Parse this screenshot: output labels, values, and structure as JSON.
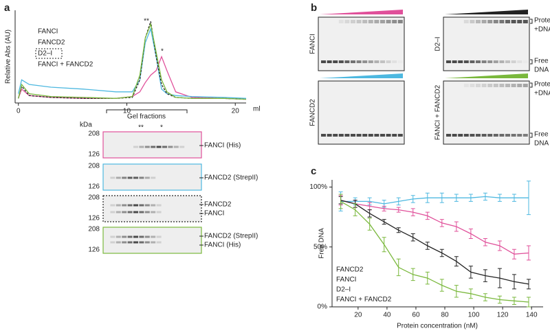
{
  "panel_labels": [
    "a",
    "b",
    "c"
  ],
  "chart_data": [
    {
      "type": "line",
      "y_label": "Relative Abs (AU)",
      "x_label": "ml",
      "x": [
        0,
        0.3,
        1,
        3,
        6,
        9,
        10.5,
        11.2,
        11.7,
        12.2,
        12.7,
        13.2,
        13.7,
        14.5,
        16,
        19,
        21
      ],
      "xlim": [
        -0.3,
        21
      ],
      "xticks": [
        0,
        10,
        20
      ],
      "ylim": [
        0,
        100
      ],
      "annotations": [
        "**",
        "*"
      ],
      "bracket_label": "Gel fractions",
      "series": [
        {
          "name": "FANCI",
          "color": "#e0509a",
          "values": [
            5,
            15,
            8,
            6,
            5,
            5,
            7,
            12,
            22,
            30,
            35,
            50,
            35,
            12,
            6,
            5,
            4
          ]
        },
        {
          "name": "FANCD2",
          "color": "#4db8e0",
          "values": [
            10,
            25,
            20,
            17,
            15,
            12,
            12,
            25,
            65,
            80,
            50,
            15,
            10,
            8,
            7,
            6,
            5
          ]
        },
        {
          "name": "D2–I",
          "color": "#222222",
          "dash": true,
          "values": [
            5,
            18,
            8,
            6,
            5,
            5,
            6,
            25,
            70,
            88,
            50,
            20,
            10,
            6,
            5,
            5,
            4
          ]
        },
        {
          "name": "FANCI + FANCD2",
          "color": "#7ab83c",
          "values": [
            5,
            20,
            10,
            7,
            6,
            5,
            7,
            30,
            70,
            85,
            55,
            25,
            12,
            6,
            5,
            5,
            4
          ]
        }
      ]
    },
    {
      "type": "line",
      "x_label": "Protein concentration (nM)",
      "y_label": "Free DNA",
      "legend": "lower left",
      "x": [
        8,
        18,
        28,
        38,
        48,
        58,
        68,
        78,
        88,
        98,
        108,
        118,
        128,
        138
      ],
      "xlim": [
        2,
        148
      ],
      "xticks": [
        20,
        40,
        60,
        80,
        100,
        120,
        140
      ],
      "ylim": [
        0,
        106
      ],
      "yticks": [
        {
          "value": 0,
          "label": "0%"
        },
        {
          "value": 50,
          "label": "50%"
        },
        {
          "value": 100,
          "label": "100%"
        }
      ],
      "series": [
        {
          "name": "FANCD2",
          "color": "#4db8e0",
          "values": [
            88,
            88,
            88,
            86,
            88,
            90,
            91,
            91,
            91,
            91,
            92,
            91,
            91,
            91
          ],
          "errors": [
            8,
            3,
            3,
            3,
            3,
            3,
            4,
            4,
            3,
            3,
            3,
            3,
            3,
            14
          ]
        },
        {
          "name": "FANCI",
          "color": "#e0509a",
          "values": [
            89,
            86,
            84,
            82,
            81,
            79,
            76,
            70,
            67,
            61,
            54,
            51,
            44,
            45
          ],
          "errors": [
            4,
            3,
            3,
            2,
            2,
            3,
            3,
            3,
            4,
            4,
            3,
            4,
            4,
            6
          ]
        },
        {
          "name": "D2–I",
          "color": "#222222",
          "values": [
            89,
            86,
            78,
            71,
            64,
            58,
            51,
            45,
            38,
            29,
            26,
            24,
            21,
            19
          ],
          "errors": [
            3,
            3,
            3,
            2,
            2,
            3,
            3,
            3,
            4,
            5,
            5,
            8,
            6,
            4
          ]
        },
        {
          "name": "FANCI + FANCD2",
          "color": "#7ab83c",
          "values": [
            88,
            81,
            69,
            52,
            33,
            27,
            24,
            18,
            13,
            11,
            8,
            6,
            5,
            4
          ],
          "errors": [
            6,
            5,
            5,
            6,
            7,
            5,
            5,
            5,
            5,
            4,
            3,
            3,
            3,
            4
          ]
        }
      ]
    }
  ],
  "gels_a": {
    "unit": "kDa",
    "markers": [
      "208",
      "126"
    ],
    "annotations": [
      "**",
      "*"
    ],
    "gels": [
      {
        "color": "#e0509a",
        "labels": [
          "FANCI (His)"
        ]
      },
      {
        "color": "#4db8e0",
        "labels": [
          "FANCD2 (StrepII)"
        ]
      },
      {
        "color": "#222222",
        "dotted": true,
        "labels": [
          "FANCD2",
          "FANCI"
        ]
      },
      {
        "color": "#7ab83c",
        "labels": [
          "FANCD2 (StrepII)",
          "FANCI (His)"
        ]
      }
    ]
  },
  "emsa_b": {
    "side_labels": [
      [
        "Protein",
        "+DNA"
      ],
      [
        "Free",
        "DNA"
      ]
    ],
    "gels": [
      {
        "label": "FANCI",
        "color": "#e0509a"
      },
      {
        "label": "D2–I",
        "color": "#222222"
      },
      {
        "label": "FANCD2",
        "color": "#4db8e0"
      },
      {
        "label": "FANCI + FANCD2",
        "color": "#7ab83c"
      }
    ]
  }
}
